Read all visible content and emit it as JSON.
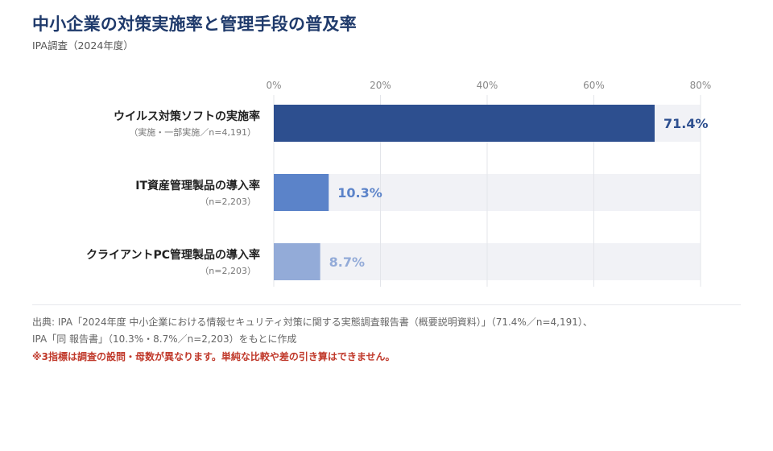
{
  "header": {
    "title": "中小企業の対策実施率と管理手段の普及率",
    "subtitle": "IPA調査（2024年度）"
  },
  "chart_data": {
    "type": "bar",
    "orientation": "horizontal",
    "x_ticks": [
      "0%",
      "20%",
      "40%",
      "60%",
      "80%"
    ],
    "xlim": [
      0,
      80
    ],
    "grid": true,
    "categories": [
      {
        "label": "ウイルス対策ソフトの実施率",
        "sublabel": "（実施・一部実施／n=4,191）",
        "value": 71.4,
        "value_label": "71.4%",
        "color": "#2d4f8f"
      },
      {
        "label": "IT資産管理製品の導入率",
        "sublabel": "（n=2,203）",
        "value": 10.3,
        "value_label": "10.3%",
        "color": "#5b83c9"
      },
      {
        "label": "クライアントPC管理製品の導入率",
        "sublabel": "（n=2,203）",
        "value": 8.7,
        "value_label": "8.7%",
        "color": "#93abd8"
      }
    ]
  },
  "footer": {
    "source_line1": "出典: IPA「2024年度 中小企業における情報セキュリティ対策に関する実態調査報告書（概要説明資料）」（71.4%／n=4,191）、",
    "source_line2": "IPA「同 報告書」（10.3%・8.7%／n=2,203）をもとに作成",
    "note": "※3指標は調査の設問・母数が異なります。単純な比較や差の引き算はできません。"
  }
}
